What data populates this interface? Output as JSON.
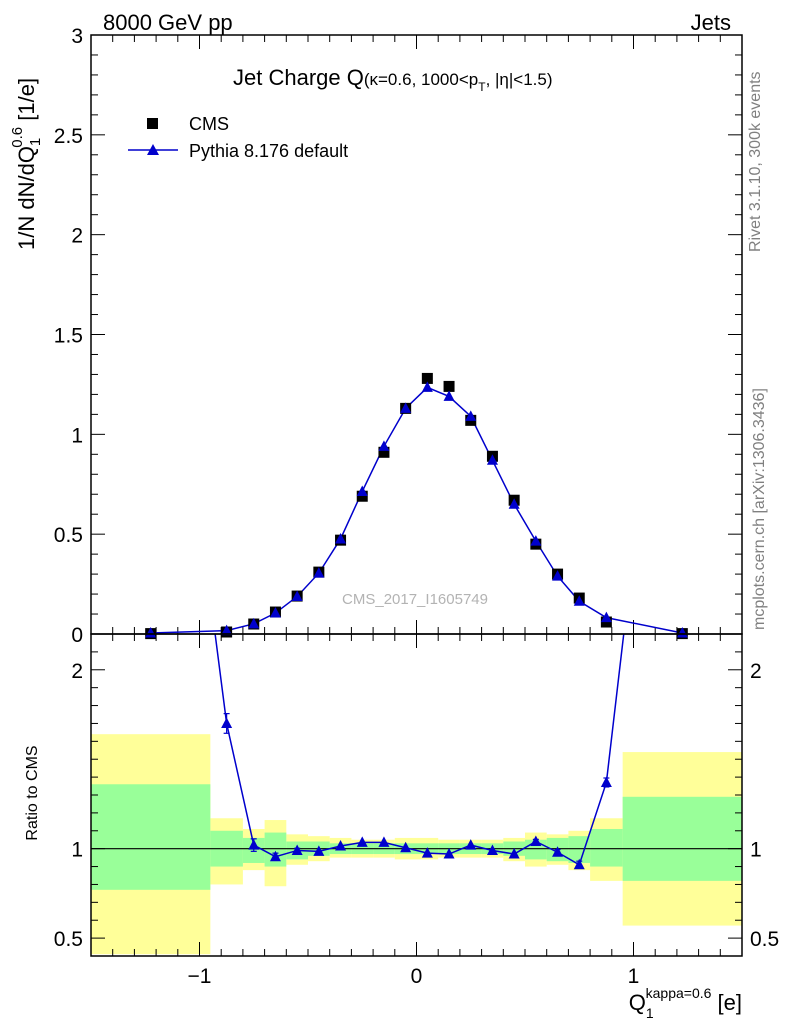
{
  "header": {
    "left": "8000 GeV pp",
    "right": "Jets"
  },
  "side_labels": {
    "rivet": "Rivet 3.1.10,  300k events",
    "mcplots": "mcplots.cern.ch [arXiv:1306.3436]"
  },
  "watermark": "CMS_2017_I1605749",
  "colors": {
    "mc": "#0000cc",
    "data": "#000000",
    "band_inner": "#99ff99",
    "band_outer": "#ffff99"
  },
  "chart_data": [
    {
      "type": "scatter",
      "title_main": "Jet Charge Q",
      "title_sub": "(κ=0.6, 1000<p",
      "title_sub_T": "T",
      "title_sub_end": ", |η|<1.5)",
      "ylabel": "1/N dN/dQ",
      "ylabel_sub": "1",
      "ylabel_sup": "0.6",
      "ylabel_unit": " [1/e]",
      "xlim": [
        -1.5,
        1.5
      ],
      "ylim": [
        0,
        3
      ],
      "yticks": [
        "0",
        "0.5",
        "1",
        "1.5",
        "2",
        "2.5",
        "3"
      ],
      "legend_position": "top-left",
      "series": [
        {
          "name": "CMS",
          "marker": "square",
          "x": [
            -1.225,
            -0.875,
            -0.75,
            -0.65,
            -0.55,
            -0.45,
            -0.35,
            -0.25,
            -0.15,
            -0.05,
            0.05,
            0.15,
            0.25,
            0.35,
            0.45,
            0.55,
            0.65,
            0.75,
            0.875,
            1.225
          ],
          "y": [
            0.002,
            0.01,
            0.05,
            0.11,
            0.19,
            0.31,
            0.47,
            0.69,
            0.91,
            1.13,
            1.28,
            1.24,
            1.07,
            0.89,
            0.67,
            0.45,
            0.3,
            0.18,
            0.06,
            0.002
          ]
        },
        {
          "name": "Pythia 8.176 default",
          "marker": "triangle",
          "x": [
            -1.225,
            -0.875,
            -0.75,
            -0.65,
            -0.55,
            -0.45,
            -0.35,
            -0.25,
            -0.15,
            -0.05,
            0.05,
            0.15,
            0.25,
            0.35,
            0.45,
            0.55,
            0.65,
            0.75,
            0.875,
            1.225
          ],
          "y": [
            0.005,
            0.017,
            0.051,
            0.105,
            0.188,
            0.305,
            0.476,
            0.714,
            0.94,
            1.13,
            1.235,
            1.19,
            1.09,
            0.87,
            0.65,
            0.465,
            0.29,
            0.164,
            0.082,
            0.005
          ]
        }
      ]
    },
    {
      "type": "scatter",
      "ylabel": "Ratio to CMS",
      "xlabel": "Q",
      "xlabel_sub": "1",
      "xlabel_sup": "kappa=0.6",
      "xlabel_unit": " [e]",
      "xlim": [
        -1.5,
        1.5
      ],
      "ylim": [
        0.4,
        2.2
      ],
      "xticks": [
        "−1",
        "0",
        "1"
      ],
      "yticks": [
        "0.5",
        "1",
        "2"
      ],
      "bins": [
        {
          "x0": -1.5,
          "x1": -0.95,
          "inner": [
            0.77,
            1.36
          ],
          "outer": [
            0.41,
            1.64
          ]
        },
        {
          "x0": -0.95,
          "x1": -0.8,
          "inner": [
            0.9,
            1.1
          ],
          "outer": [
            0.8,
            1.17
          ]
        },
        {
          "x0": -0.8,
          "x1": -0.7,
          "inner": [
            0.92,
            1.06
          ],
          "outer": [
            0.88,
            1.11
          ]
        },
        {
          "x0": -0.7,
          "x1": -0.6,
          "inner": [
            0.9,
            1.09
          ],
          "outer": [
            0.79,
            1.16
          ]
        },
        {
          "x0": -0.6,
          "x1": -0.5,
          "inner": [
            0.94,
            1.04
          ],
          "outer": [
            0.91,
            1.08
          ]
        },
        {
          "x0": -0.5,
          "x1": -0.4,
          "inner": [
            0.96,
            1.04
          ],
          "outer": [
            0.93,
            1.07
          ]
        },
        {
          "x0": -0.4,
          "x1": -0.3,
          "inner": [
            0.97,
            1.03
          ],
          "outer": [
            0.95,
            1.06
          ]
        },
        {
          "x0": -0.3,
          "x1": -0.2,
          "inner": [
            0.97,
            1.03
          ],
          "outer": [
            0.95,
            1.05
          ]
        },
        {
          "x0": -0.2,
          "x1": -0.1,
          "inner": [
            0.97,
            1.03
          ],
          "outer": [
            0.95,
            1.05
          ]
        },
        {
          "x0": -0.1,
          "x1": 0.0,
          "inner": [
            0.97,
            1.03
          ],
          "outer": [
            0.94,
            1.06
          ]
        },
        {
          "x0": 0.0,
          "x1": 0.1,
          "inner": [
            0.97,
            1.03
          ],
          "outer": [
            0.94,
            1.06
          ]
        },
        {
          "x0": 0.1,
          "x1": 0.2,
          "inner": [
            0.97,
            1.03
          ],
          "outer": [
            0.95,
            1.05
          ]
        },
        {
          "x0": 0.2,
          "x1": 0.3,
          "inner": [
            0.97,
            1.03
          ],
          "outer": [
            0.95,
            1.05
          ]
        },
        {
          "x0": 0.3,
          "x1": 0.4,
          "inner": [
            0.97,
            1.03
          ],
          "outer": [
            0.95,
            1.05
          ]
        },
        {
          "x0": 0.4,
          "x1": 0.5,
          "inner": [
            0.96,
            1.04
          ],
          "outer": [
            0.93,
            1.06
          ]
        },
        {
          "x0": 0.5,
          "x1": 0.6,
          "inner": [
            0.94,
            1.05
          ],
          "outer": [
            0.9,
            1.09
          ]
        },
        {
          "x0": 0.6,
          "x1": 0.7,
          "inner": [
            0.93,
            1.06
          ],
          "outer": [
            0.91,
            1.08
          ]
        },
        {
          "x0": 0.7,
          "x1": 0.8,
          "inner": [
            0.92,
            1.07
          ],
          "outer": [
            0.88,
            1.1
          ]
        },
        {
          "x0": 0.8,
          "x1": 0.95,
          "inner": [
            0.9,
            1.11
          ],
          "outer": [
            0.82,
            1.17
          ]
        },
        {
          "x0": 0.95,
          "x1": 1.5,
          "inner": [
            0.82,
            1.29
          ],
          "outer": [
            0.57,
            1.54
          ]
        }
      ],
      "ratio": {
        "x": [
          -0.875,
          -0.75,
          -0.65,
          -0.55,
          -0.45,
          -0.35,
          -0.25,
          -0.15,
          -0.05,
          0.05,
          0.15,
          0.25,
          0.35,
          0.45,
          0.55,
          0.65,
          0.75,
          0.875
        ],
        "y": [
          1.7,
          1.02,
          0.955,
          0.99,
          0.985,
          1.015,
          1.035,
          1.035,
          1.005,
          0.975,
          0.97,
          1.02,
          0.99,
          0.97,
          1.04,
          0.98,
          0.91,
          1.37
        ],
        "err": [
          0.055,
          0.035,
          0.02,
          0.012,
          0.008,
          0.006,
          0.005,
          0.004,
          0.004,
          0.004,
          0.004,
          0.005,
          0.006,
          0.008,
          0.012,
          0.015,
          0.02,
          0.025
        ]
      },
      "ratio_line_ends": {
        "left": {
          "x0": -1.225,
          "y0": 5.0,
          "x1": -0.875,
          "y1": 1.7
        },
        "right": {
          "x0": 0.875,
          "y0": 1.37,
          "x1": 1.225,
          "y1": 5.0
        }
      }
    }
  ]
}
